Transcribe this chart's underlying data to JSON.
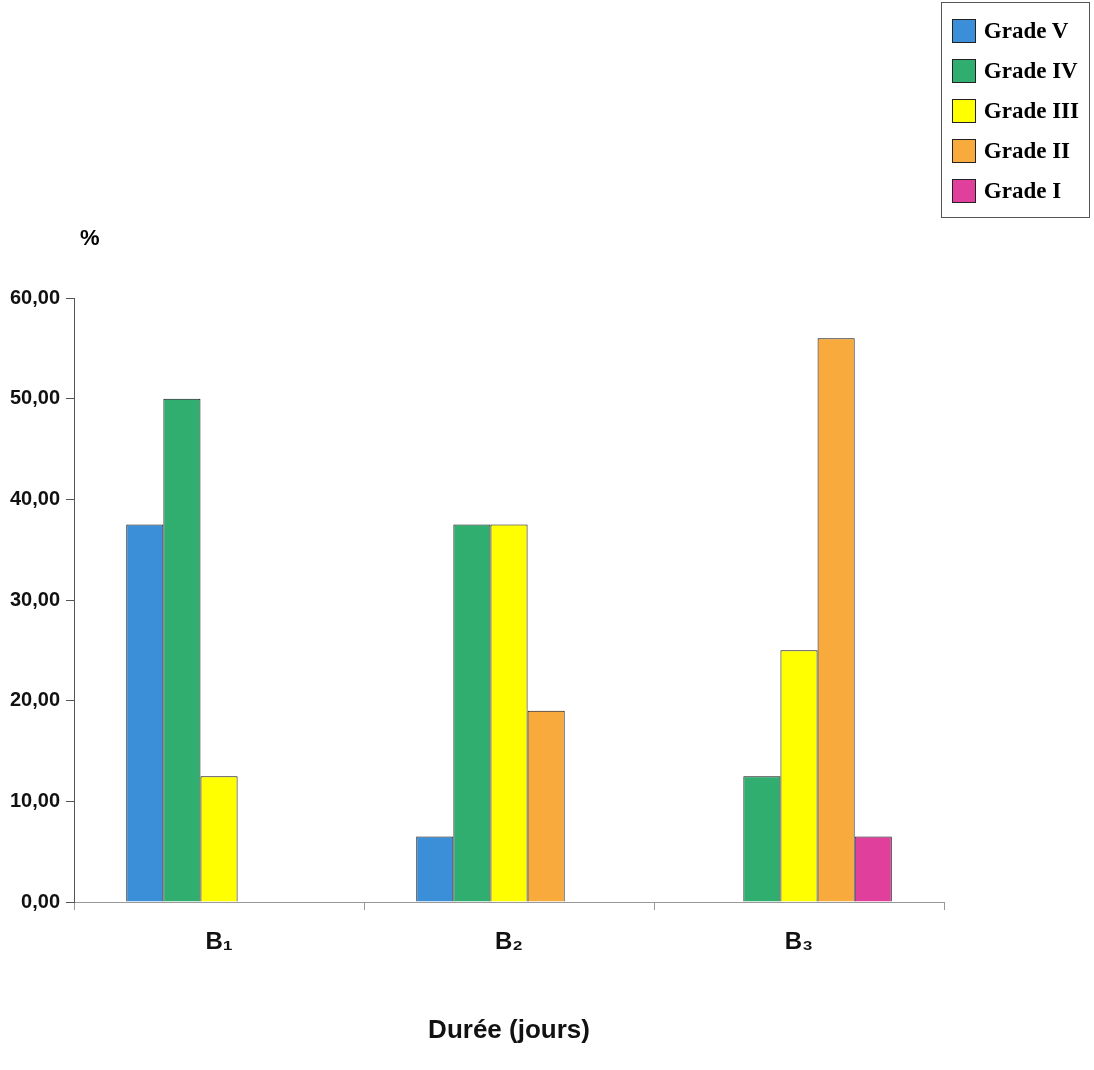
{
  "chart_data": {
    "type": "bar",
    "xlabel": "Durée (jours)",
    "ylabel": "%",
    "categories": [
      "B₁",
      "B₂",
      "B₃"
    ],
    "series": [
      {
        "name": "Grade V",
        "color": "#3a8fd8",
        "values": [
          37.5,
          6.5,
          0
        ]
      },
      {
        "name": "Grade IV",
        "color": "#2fae70",
        "values": [
          50,
          37.5,
          12.5
        ]
      },
      {
        "name": "Grade III",
        "color": "#ffff00",
        "values": [
          12.5,
          37.5,
          25
        ]
      },
      {
        "name": "Grade II",
        "color": "#f8aa3c",
        "values": [
          0,
          19,
          56
        ]
      },
      {
        "name": "Grade I",
        "color": "#e0409c",
        "values": [
          0,
          0,
          6.5
        ]
      }
    ],
    "ylim": [
      0,
      60
    ],
    "yticks": [
      {
        "value": 0,
        "label": "0,00"
      },
      {
        "value": 10,
        "label": "10,00"
      },
      {
        "value": 20,
        "label": "20,00"
      },
      {
        "value": 30,
        "label": "30,00"
      },
      {
        "value": 40,
        "label": "40,00"
      },
      {
        "value": 50,
        "label": "50,00"
      },
      {
        "value": 60,
        "label": "60,00"
      }
    ],
    "grid": false,
    "legend": "top right"
  }
}
